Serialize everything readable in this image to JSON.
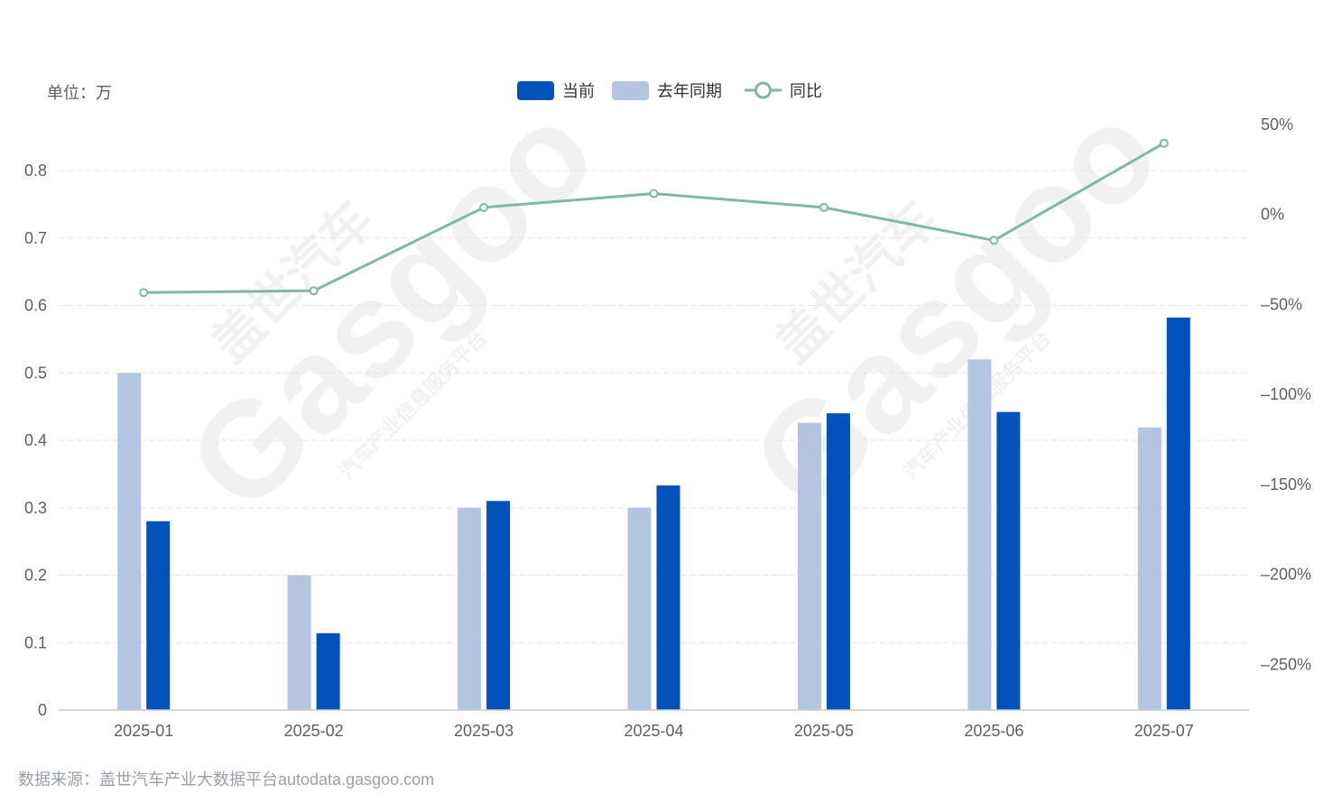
{
  "unit_label": "单位：万",
  "source_label": "数据来源：盖世汽车产业大数据平台autodata.gasgoo.com",
  "watermark": {
    "brand": "Gasgoo",
    "chinese": "盖世汽车",
    "tagline": "汽车产业信息服务平台"
  },
  "colors": {
    "current": "#0352bb",
    "last_year": "#b4c5e1",
    "yoy": "#7fb9a0",
    "grid": "#e6e6e6",
    "axis": "#cccccc"
  },
  "chart_data": {
    "type": "bar",
    "categories": [
      "2025-01",
      "2025-02",
      "2025-03",
      "2025-04",
      "2025-05",
      "2025-06",
      "2025-07"
    ],
    "series": [
      {
        "name": "当前",
        "type": "bar",
        "axis": "left",
        "values": [
          0.28,
          0.114,
          0.31,
          0.333,
          0.44,
          0.442,
          0.582
        ]
      },
      {
        "name": "去年同期",
        "type": "bar",
        "axis": "left",
        "values": [
          0.5,
          0.2,
          0.3,
          0.3,
          0.426,
          0.52,
          0.419
        ]
      },
      {
        "name": "同比",
        "type": "line",
        "axis": "right",
        "values": [
          -44,
          -43,
          3.3,
          11,
          3.3,
          -15,
          39
        ]
      }
    ],
    "y_left": {
      "ylim": [
        0,
        0.8
      ],
      "ticks": [
        "0",
        "0.1",
        "0.2",
        "0.3",
        "0.4",
        "0.5",
        "0.6",
        "0.7",
        "0.8"
      ]
    },
    "y_right": {
      "ylim": [
        -250,
        50
      ],
      "ticks": [
        "50%",
        "0%",
        "–50%",
        "–100%",
        "–150%",
        "–200%",
        "–250%"
      ]
    },
    "legend": {
      "placement": "top-center",
      "items": [
        "当前",
        "去年同期",
        "同比"
      ]
    },
    "grid": true
  }
}
